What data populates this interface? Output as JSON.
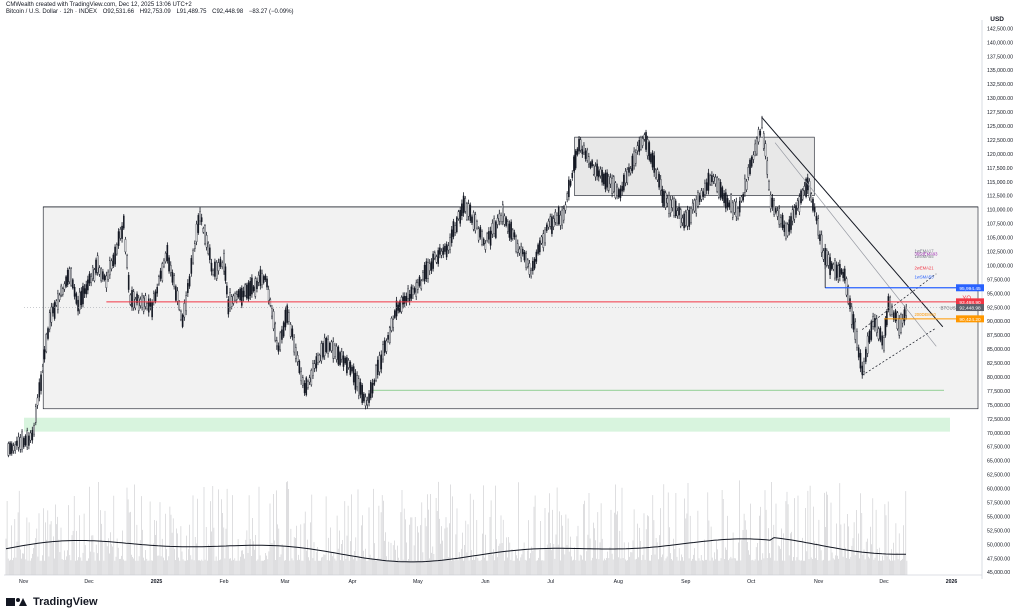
{
  "header": {
    "credit": "CMWealth created with TradingView.com, Dec 12, 2025 13:06 UTC+2",
    "symbol": "Bitcoin / U.S. Dollar · 12h · INDEX",
    "open": "O92,531.66",
    "high": "H92,753.09",
    "low": "L91,489.75",
    "close": "C92,448.98",
    "change": "−83.27 (−0.09%)"
  },
  "footer": {
    "brand": "TradingView"
  },
  "colors": {
    "candle": "#131722",
    "resistance_red": "#f23645",
    "blue_level": "#2962ff",
    "orange_level": "#ff9800",
    "green_zone": "#c8f0d0",
    "range_box": "#f2f2f2"
  },
  "chart_data": {
    "type": "candlestick",
    "currency": "USD",
    "x_labels": [
      "Nov",
      "Dec",
      "2025",
      "Feb",
      "Mar",
      "Apr",
      "May",
      "Jun",
      "Jul",
      "Aug",
      "Sep",
      "Oct",
      "Nov",
      "Dec",
      "2026"
    ],
    "y_ticks": [
      "142,500.00",
      "140,000.00",
      "137,500.00",
      "135,000.00",
      "132,500.00",
      "130,000.00",
      "127,500.00",
      "125,000.00",
      "122,500.00",
      "120,000.00",
      "117,500.00",
      "115,000.00",
      "112,500.00",
      "110,000.00",
      "107,500.00",
      "105,000.00",
      "102,500.00",
      "100,000.00",
      "97,500.00",
      "95,000.00",
      "92,500.00",
      "90,000.00",
      "87,500.00",
      "85,000.00",
      "82,500.00",
      "80,000.00",
      "77,500.00",
      "75,000.00",
      "72,500.00",
      "70,000.00",
      "67,500.00",
      "65,000.00",
      "62,500.00",
      "60,000.00",
      "57,500.00",
      "55,000.00",
      "52,500.00",
      "50,000.00",
      "47,500.00",
      "45,000.00"
    ],
    "ylim": [
      44500,
      144000
    ],
    "price_path": [
      {
        "t": "2024-10-25",
        "p": 67000
      },
      {
        "t": "2024-11-05",
        "p": 69000
      },
      {
        "t": "2024-11-13",
        "p": 90000
      },
      {
        "t": "2024-11-22",
        "p": 98500
      },
      {
        "t": "2024-11-26",
        "p": 93000
      },
      {
        "t": "2024-12-05",
        "p": 100000
      },
      {
        "t": "2024-12-09",
        "p": 97000
      },
      {
        "t": "2024-12-17",
        "p": 107500
      },
      {
        "t": "2024-12-20",
        "p": 94000
      },
      {
        "t": "2024-12-30",
        "p": 92500
      },
      {
        "t": "2025-01-06",
        "p": 102000
      },
      {
        "t": "2025-01-13",
        "p": 90000
      },
      {
        "t": "2025-01-21",
        "p": 109000
      },
      {
        "t": "2025-01-27",
        "p": 99000
      },
      {
        "t": "2025-02-01",
        "p": 101000
      },
      {
        "t": "2025-02-03",
        "p": 93000
      },
      {
        "t": "2025-02-20",
        "p": 98000
      },
      {
        "t": "2025-02-26",
        "p": 85000
      },
      {
        "t": "2025-03-02",
        "p": 91500
      },
      {
        "t": "2025-03-10",
        "p": 78000
      },
      {
        "t": "2025-03-20",
        "p": 86000
      },
      {
        "t": "2025-03-31",
        "p": 82000
      },
      {
        "t": "2025-04-07",
        "p": 75000
      },
      {
        "t": "2025-04-15",
        "p": 84000
      },
      {
        "t": "2025-04-22",
        "p": 93000
      },
      {
        "t": "2025-05-01",
        "p": 96000
      },
      {
        "t": "2025-05-08",
        "p": 101000
      },
      {
        "t": "2025-05-15",
        "p": 103500
      },
      {
        "t": "2025-05-22",
        "p": 111000
      },
      {
        "t": "2025-06-01",
        "p": 104000
      },
      {
        "t": "2025-06-09",
        "p": 109000
      },
      {
        "t": "2025-06-22",
        "p": 99000
      },
      {
        "t": "2025-06-30",
        "p": 107500
      },
      {
        "t": "2025-07-07",
        "p": 109000
      },
      {
        "t": "2025-07-14",
        "p": 122000
      },
      {
        "t": "2025-07-20",
        "p": 118000
      },
      {
        "t": "2025-08-02",
        "p": 113000
      },
      {
        "t": "2025-08-13",
        "p": 123500
      },
      {
        "t": "2025-08-22",
        "p": 112000
      },
      {
        "t": "2025-09-01",
        "p": 108000
      },
      {
        "t": "2025-09-13",
        "p": 115500
      },
      {
        "t": "2025-09-25",
        "p": 109000
      },
      {
        "t": "2025-10-06",
        "p": 125500
      },
      {
        "t": "2025-10-10",
        "p": 112000
      },
      {
        "t": "2025-10-17",
        "p": 106000
      },
      {
        "t": "2025-10-27",
        "p": 115000
      },
      {
        "t": "2025-11-04",
        "p": 101000
      },
      {
        "t": "2025-11-13",
        "p": 98000
      },
      {
        "t": "2025-11-21",
        "p": 81000
      },
      {
        "t": "2025-11-26",
        "p": 90000
      },
      {
        "t": "2025-12-01",
        "p": 86000
      },
      {
        "t": "2025-12-03",
        "p": 93500
      },
      {
        "t": "2025-12-08",
        "p": 89000
      },
      {
        "t": "2025-12-12",
        "p": 92449
      }
    ],
    "levels": [
      {
        "label": "95,994.45",
        "value": 95994,
        "color": "#2962ff"
      },
      {
        "label": "YO",
        "tag": "93,468.90",
        "value": 93469,
        "color": "#f23645"
      },
      {
        "label": "BTCUSD",
        "tag": "92,448.98",
        "value": 92449,
        "color": "#5d606b"
      },
      {
        "label": "MO",
        "tag": "90,424.20",
        "value": 90424,
        "color": "#ff9800"
      }
    ],
    "annotations": [
      "1wEMA17",
      "365dEMA93",
      "1wSMA55",
      "2wEMA21",
      "1wSMA50",
      "200DEMA0"
    ],
    "volume_range": [
      0,
      1
    ]
  }
}
